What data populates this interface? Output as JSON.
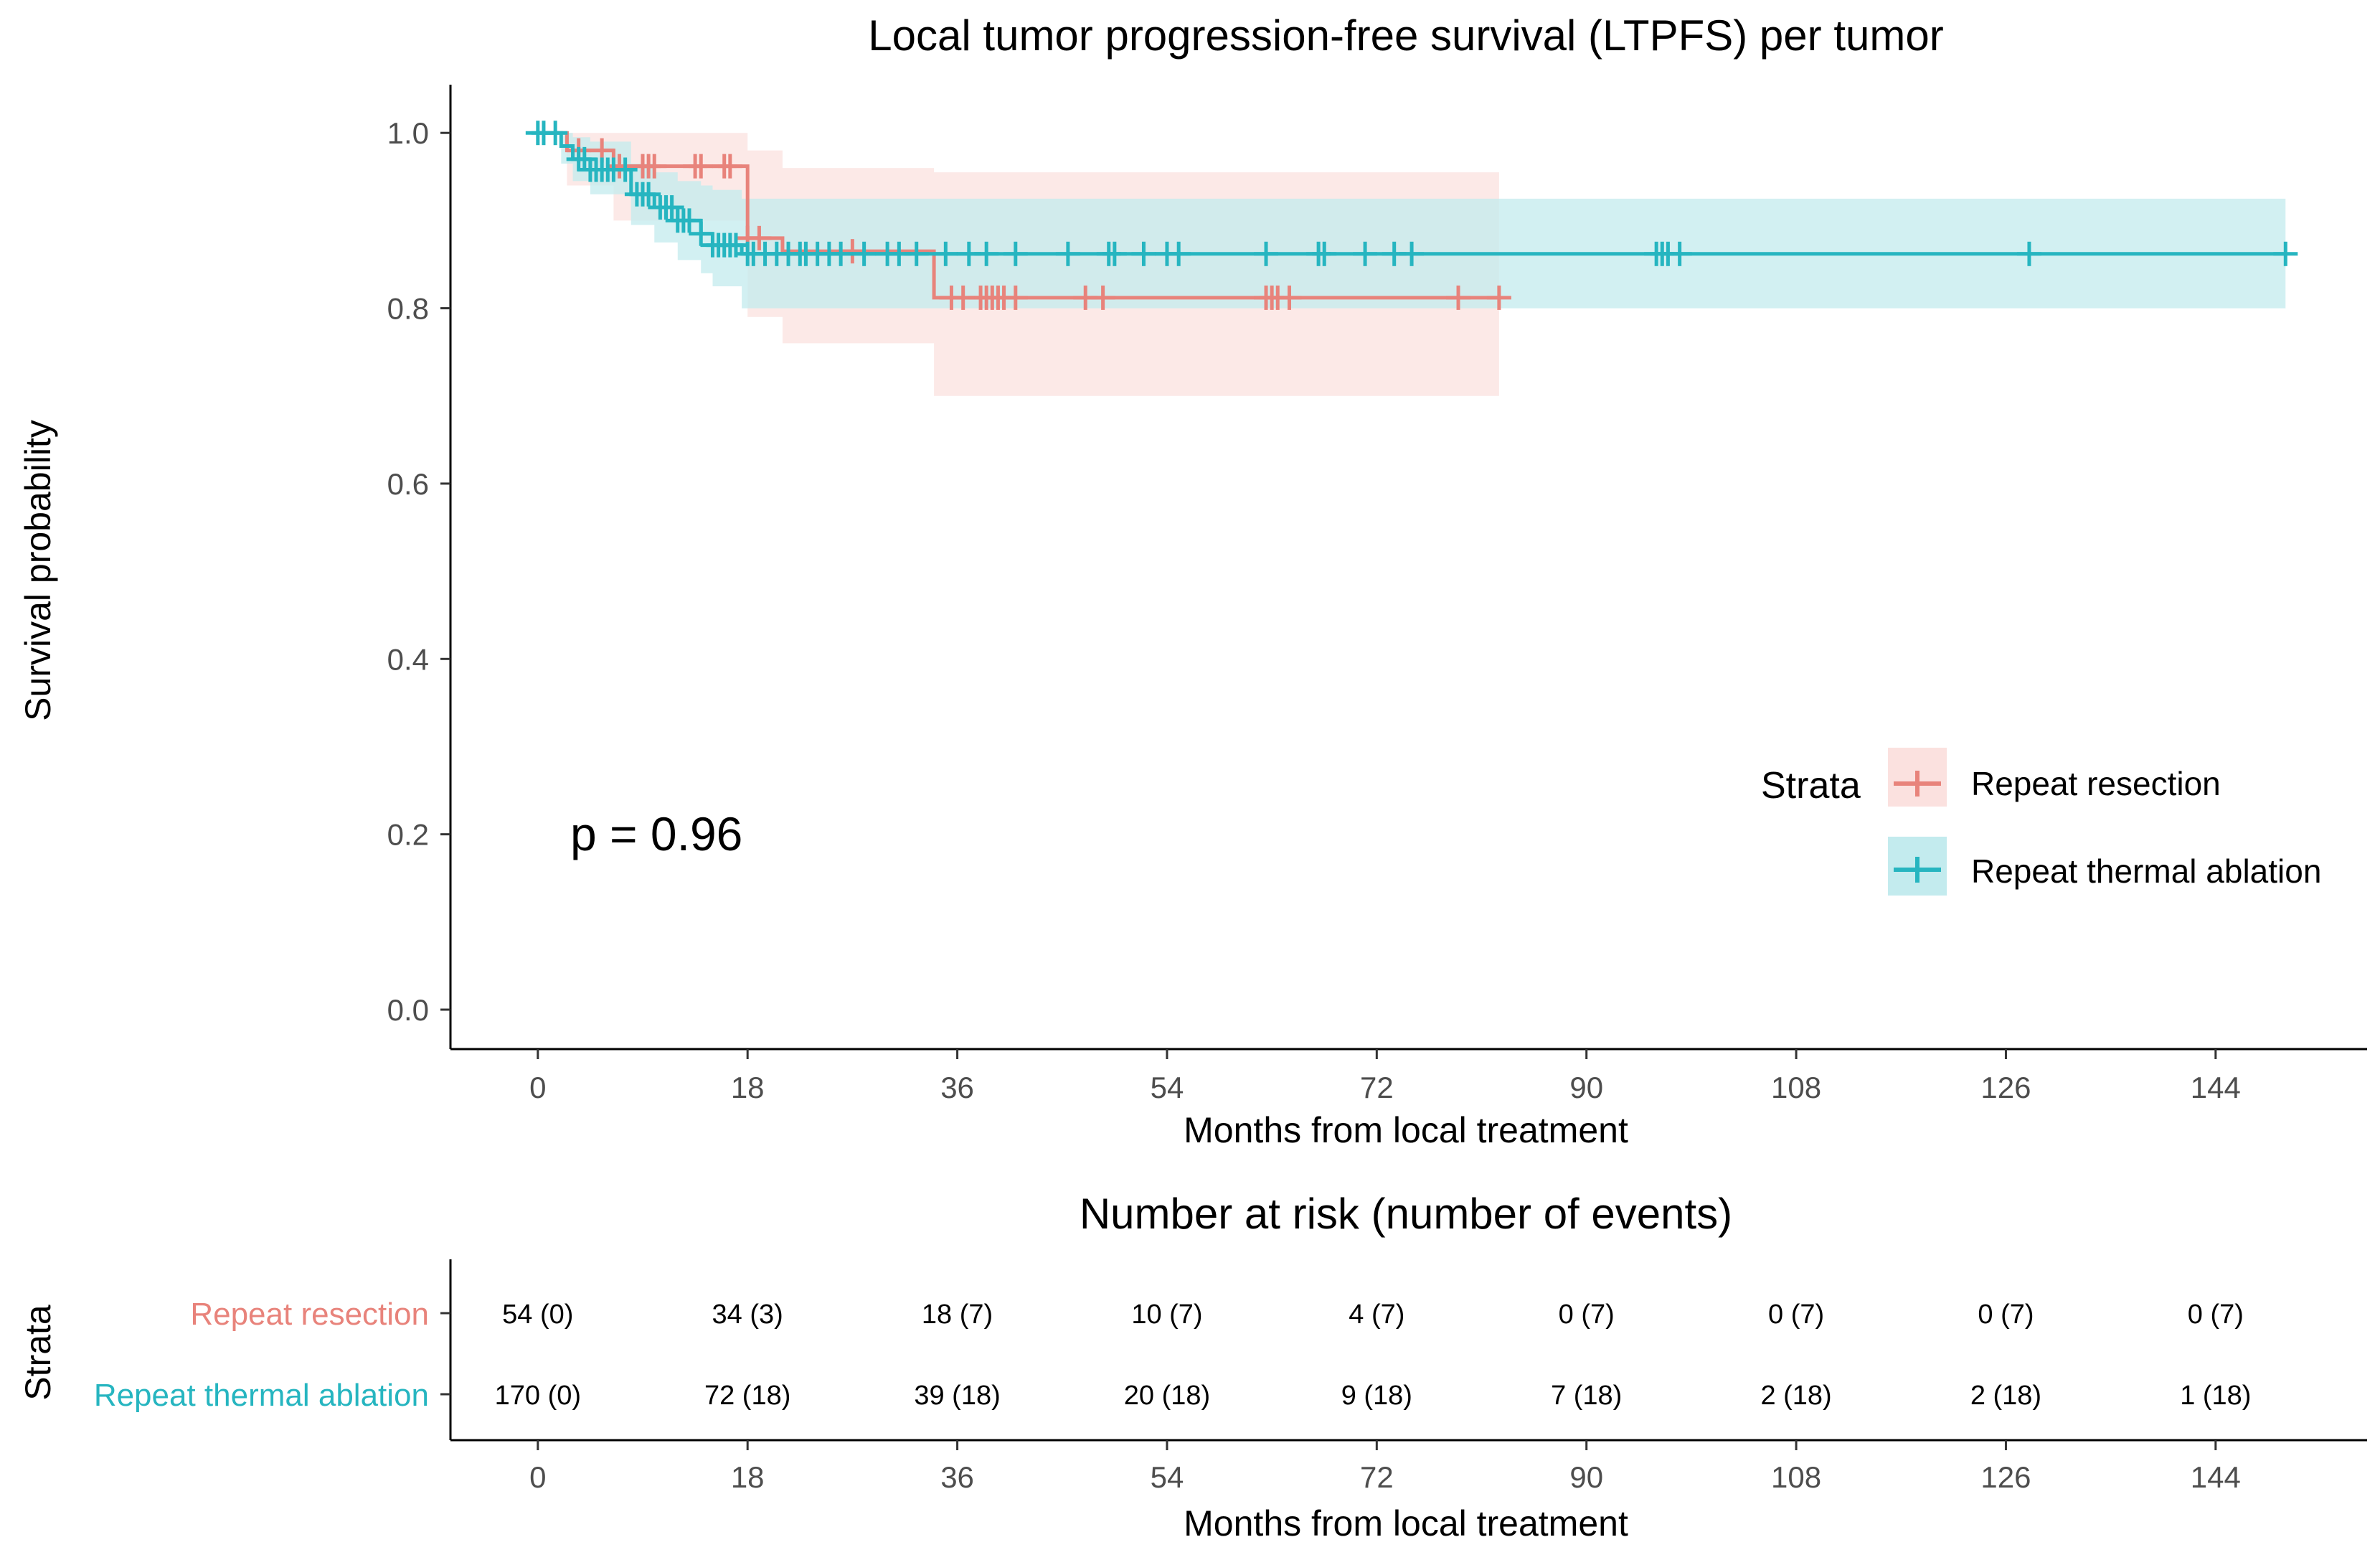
{
  "chart_data": {
    "type": "kaplan-meier",
    "title": "Local tumor progression-free survival (LTPFS) per tumor",
    "xlabel": "Months from local treatment",
    "ylabel": "Survival probability",
    "xlim": [
      -7.5,
      157
    ],
    "ylim": [
      -0.045,
      1.055
    ],
    "x_ticks": [
      0,
      18,
      36,
      54,
      72,
      90,
      108,
      126,
      144
    ],
    "x_tick_labels": [
      "0",
      "18",
      "36",
      "54",
      "72",
      "90",
      "108",
      "126",
      "144"
    ],
    "y_ticks": [
      0.0,
      0.2,
      0.4,
      0.6,
      0.8,
      1.0
    ],
    "y_tick_labels": [
      "0.0",
      "0.2",
      "0.4",
      "0.6",
      "0.8",
      "1.0"
    ],
    "p_value": "p = 0.96",
    "legend": {
      "title": "Strata",
      "position": "right-middle",
      "entries": [
        "Repeat resection",
        "Repeat thermal ablation"
      ]
    },
    "series": [
      {
        "name": "Repeat resection",
        "color": "#e8837b",
        "ci_color": "#fbe1df",
        "steps": [
          [
            0,
            1.0
          ],
          [
            2.5,
            0.98
          ],
          [
            6.5,
            0.962
          ],
          [
            18,
            0.88
          ],
          [
            21,
            0.865
          ],
          [
            34,
            0.812
          ],
          [
            82.5,
            0.812
          ]
        ],
        "ci": [
          [
            0,
            1.0,
            1.0
          ],
          [
            2.5,
            0.94,
            1.0
          ],
          [
            6.5,
            0.9,
            1.0
          ],
          [
            18,
            0.79,
            0.98
          ],
          [
            21,
            0.76,
            0.96
          ],
          [
            34,
            0.7,
            0.955
          ],
          [
            82.5,
            0.7,
            0.955
          ]
        ],
        "censor_times": [
          3.5,
          5.5,
          7,
          9,
          9.5,
          10,
          13.5,
          14,
          16,
          16.5,
          18,
          19,
          27,
          35.5,
          36.5,
          38,
          38.5,
          39,
          39.5,
          40,
          41,
          47,
          48.5,
          62.5,
          63,
          63.5,
          64.5,
          79,
          82.5
        ]
      },
      {
        "name": "Repeat thermal ablation",
        "color": "#26b5c0",
        "ci_color": "#c3ebee",
        "steps": [
          [
            0,
            1.0
          ],
          [
            2,
            0.985
          ],
          [
            3,
            0.97
          ],
          [
            4.5,
            0.958
          ],
          [
            8,
            0.93
          ],
          [
            10,
            0.915
          ],
          [
            12,
            0.9
          ],
          [
            14,
            0.885
          ],
          [
            15,
            0.872
          ],
          [
            17.5,
            0.862
          ],
          [
            150,
            0.862
          ]
        ],
        "ci": [
          [
            0,
            1.0,
            1.0
          ],
          [
            2,
            0.965,
            1.0
          ],
          [
            3,
            0.945,
            0.995
          ],
          [
            4.5,
            0.93,
            0.99
          ],
          [
            8,
            0.895,
            0.965
          ],
          [
            10,
            0.875,
            0.955
          ],
          [
            12,
            0.855,
            0.945
          ],
          [
            14,
            0.84,
            0.94
          ],
          [
            15,
            0.825,
            0.935
          ],
          [
            17.5,
            0.8,
            0.925
          ],
          [
            150,
            0.8,
            0.925
          ]
        ],
        "censor_times": [
          0,
          0.5,
          1.5,
          3.5,
          4,
          4.5,
          5,
          5.5,
          6,
          6.5,
          7.5,
          8.5,
          9,
          9.5,
          10.5,
          11,
          11.5,
          12,
          12.5,
          13,
          14,
          15,
          15.5,
          16,
          16.5,
          17,
          18,
          18.5,
          19.5,
          20.5,
          21.5,
          22.5,
          23,
          24,
          25,
          26,
          28,
          30,
          31,
          32.5,
          35,
          37,
          38.5,
          41,
          45.5,
          49,
          49.5,
          52,
          54,
          55,
          62.5,
          67,
          67.5,
          71,
          73.5,
          75,
          96,
          96.5,
          97,
          98,
          128,
          150
        ]
      }
    ],
    "risk_table": {
      "title": "Number at risk (number of events)",
      "ylabel": "Strata",
      "xlabel": "Months from local treatment",
      "x_tick_labels": [
        "0",
        "18",
        "36",
        "54",
        "72",
        "90",
        "108",
        "126",
        "144"
      ],
      "rows": [
        {
          "label": "Repeat resection",
          "color": "#e8837b",
          "values": [
            "54 (0)",
            "34 (3)",
            "18 (7)",
            "10 (7)",
            "4 (7)",
            "0 (7)",
            "0 (7)",
            "0 (7)",
            "0 (7)"
          ]
        },
        {
          "label": "Repeat thermal ablation",
          "color": "#26b5c0",
          "values": [
            "170 (0)",
            "72 (18)",
            "39 (18)",
            "20 (18)",
            "9 (18)",
            "7 (18)",
            "2 (18)",
            "2 (18)",
            "1 (18)"
          ]
        }
      ]
    }
  }
}
